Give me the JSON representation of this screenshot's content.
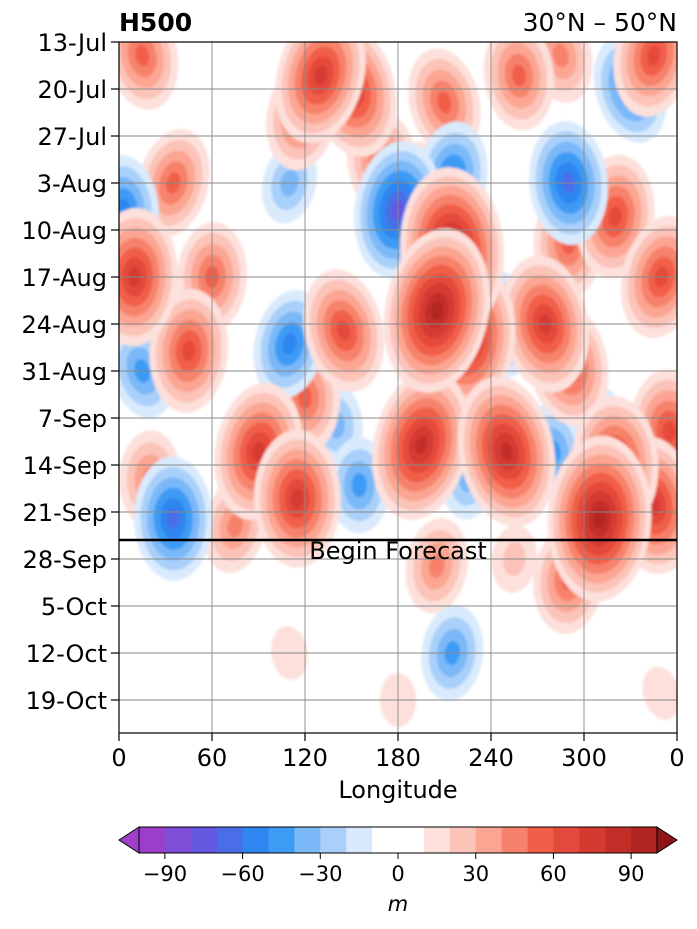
{
  "chart_data": {
    "type": "heatmap",
    "title_left": "H500",
    "title_right": "30°N – 50°N",
    "xlabel": "Longitude",
    "x_ticks": [
      "0",
      "60",
      "120",
      "180",
      "240",
      "300",
      "0"
    ],
    "x_tick_values": [
      0,
      60,
      120,
      180,
      240,
      300,
      360
    ],
    "xlim": [
      0,
      360
    ],
    "y_ticks": [
      "13-Jul",
      "20-Jul",
      "27-Jul",
      "3-Aug",
      "10-Aug",
      "17-Aug",
      "24-Aug",
      "31-Aug",
      "7-Sep",
      "14-Sep",
      "21-Sep",
      "28-Sep",
      "5-Oct",
      "12-Oct",
      "19-Oct"
    ],
    "forecast_annotation": "Begin Forecast",
    "forecast_start_date": "25-Sep",
    "grid": true,
    "colorbar": {
      "label": "m",
      "tick_labels": [
        "−90",
        "−60",
        "−30",
        "0",
        "30",
        "60",
        "90"
      ],
      "tick_values": [
        -90,
        -60,
        -30,
        0,
        30,
        60,
        90
      ],
      "levels": [
        -100,
        -90,
        -80,
        -70,
        -60,
        -50,
        -40,
        -30,
        -20,
        -10,
        10,
        20,
        30,
        40,
        50,
        60,
        70,
        80,
        90,
        100
      ],
      "colors": [
        "#9b3ec9",
        "#7f4ed6",
        "#6558e0",
        "#4a6ee8",
        "#2f86f0",
        "#3c9bf5",
        "#7ab8f8",
        "#a9d0fa",
        "#d9eafd",
        "#ffffff",
        "#fde0db",
        "#fcc3b8",
        "#fba592",
        "#f7826c",
        "#f15f4a",
        "#e44a3b",
        "#d53a31",
        "#c42e29",
        "#b22523"
      ],
      "under_color": "#a040c8",
      "over_color": "#8e1418",
      "extend": "both"
    },
    "anomaly_blobs": [
      {
        "lon": 15,
        "date": "15-Jul",
        "value": 55
      },
      {
        "lon": 35,
        "date": "3-Aug",
        "value": 50
      },
      {
        "lon": 10,
        "date": "17-Aug",
        "value": 70
      },
      {
        "lon": 45,
        "date": "28-Aug",
        "value": 65
      },
      {
        "lon": 35,
        "date": "22-Sep",
        "value": -60
      },
      {
        "lon": 3,
        "date": "7-Aug",
        "value": -55
      },
      {
        "lon": 90,
        "date": "12-Sep",
        "value": 70
      },
      {
        "lon": 60,
        "date": "17-Aug",
        "value": 55
      },
      {
        "lon": 130,
        "date": "18-Jul",
        "value": 75
      },
      {
        "lon": 150,
        "date": "20-Jul",
        "value": 70
      },
      {
        "lon": 118,
        "date": "24-Jul",
        "value": 55
      },
      {
        "lon": 170,
        "date": "31-Jul",
        "value": 50
      },
      {
        "lon": 210,
        "date": "22-Jul",
        "value": 55
      },
      {
        "lon": 258,
        "date": "18-Jul",
        "value": 55
      },
      {
        "lon": 285,
        "date": "15-Jul",
        "value": 45
      },
      {
        "lon": 345,
        "date": "15-Jul",
        "value": 65
      },
      {
        "lon": 320,
        "date": "8-Aug",
        "value": 60
      },
      {
        "lon": 290,
        "date": "12-Aug",
        "value": 55
      },
      {
        "lon": 350,
        "date": "17-Aug",
        "value": 60
      },
      {
        "lon": 215,
        "date": "13-Aug",
        "value": 90
      },
      {
        "lon": 205,
        "date": "22-Aug",
        "value": 95
      },
      {
        "lon": 225,
        "date": "26-Aug",
        "value": 80
      },
      {
        "lon": 195,
        "date": "4-Aug",
        "value": 45
      },
      {
        "lon": 145,
        "date": "25-Aug",
        "value": 65
      },
      {
        "lon": 120,
        "date": "4-Sep",
        "value": 50
      },
      {
        "lon": 140,
        "date": "8-Sep",
        "value": -35
      },
      {
        "lon": 275,
        "date": "24-Aug",
        "value": 75
      },
      {
        "lon": 290,
        "date": "30-Aug",
        "value": 60
      },
      {
        "lon": 195,
        "date": "11-Sep",
        "value": 80
      },
      {
        "lon": 250,
        "date": "12-Sep",
        "value": 80
      },
      {
        "lon": 320,
        "date": "14-Sep",
        "value": 75
      },
      {
        "lon": 310,
        "date": "22-Sep",
        "value": 90
      },
      {
        "lon": 345,
        "date": "20-Sep",
        "value": 70
      },
      {
        "lon": 355,
        "date": "9-Sep",
        "value": 60
      },
      {
        "lon": 115,
        "date": "19-Sep",
        "value": 70
      },
      {
        "lon": 20,
        "date": "16-Sep",
        "value": 45
      },
      {
        "lon": 75,
        "date": "23-Sep",
        "value": 40
      },
      {
        "lon": 205,
        "date": "29-Sep",
        "value": 45
      },
      {
        "lon": 290,
        "date": "1-Oct",
        "value": 50
      },
      {
        "lon": 255,
        "date": "28-Sep",
        "value": 25
      },
      {
        "lon": 180,
        "date": "19-Oct",
        "value": 15
      },
      {
        "lon": 350,
        "date": "18-Oct",
        "value": 12
      },
      {
        "lon": 110,
        "date": "12-Oct",
        "value": 12
      },
      {
        "lon": 215,
        "date": "2-Aug",
        "value": -55
      },
      {
        "lon": 180,
        "date": "7-Aug",
        "value": -70
      },
      {
        "lon": 290,
        "date": "3-Aug",
        "value": -65
      },
      {
        "lon": 330,
        "date": "20-Jul",
        "value": -55
      },
      {
        "lon": 245,
        "date": "24-Aug",
        "value": -55
      },
      {
        "lon": 110,
        "date": "27-Aug",
        "value": -50
      },
      {
        "lon": 15,
        "date": "31-Aug",
        "value": -45
      },
      {
        "lon": 280,
        "date": "12-Sep",
        "value": -45
      },
      {
        "lon": 155,
        "date": "17-Sep",
        "value": -45
      },
      {
        "lon": 225,
        "date": "16-Sep",
        "value": -35
      },
      {
        "lon": 110,
        "date": "3-Aug",
        "value": -30
      },
      {
        "lon": 215,
        "date": "12-Oct",
        "value": -45
      },
      {
        "lon": 310,
        "date": "8-Sep",
        "value": -30
      }
    ]
  }
}
